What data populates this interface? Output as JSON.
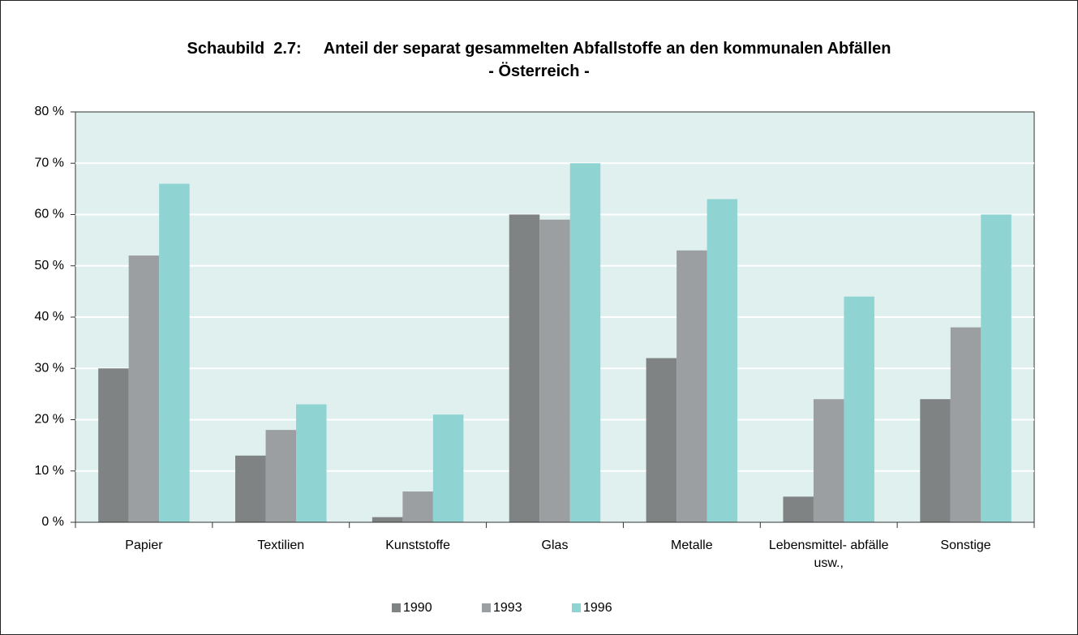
{
  "chart_data": {
    "type": "bar",
    "title": "Schaubild  2.7:     Anteil der separat gesammelten Abfallstoffe an den kommunalen Abfällen",
    "subtitle": "- Österreich -",
    "categories": [
      "Papier",
      "Textilien",
      "Kunststoffe",
      "Glas",
      "Metalle",
      "Lebensmittel- abfälle usw.,",
      "Sonstige"
    ],
    "series": [
      {
        "name": "1990",
        "color": "#7f8383",
        "values": [
          30,
          13,
          1,
          60,
          32,
          5,
          24
        ]
      },
      {
        "name": "1993",
        "color": "#9c9fa2",
        "values": [
          52,
          18,
          6,
          59,
          53,
          24,
          38
        ]
      },
      {
        "name": "1996",
        "color": "#8fd4d3",
        "values": [
          66,
          23,
          21,
          70,
          63,
          44,
          60
        ]
      }
    ],
    "ylim": [
      0,
      80
    ],
    "yticks": [
      {
        "value": 0,
        "label": "0 %"
      },
      {
        "value": 10,
        "label": "10 %"
      },
      {
        "value": 20,
        "label": "20 %"
      },
      {
        "value": 30,
        "label": "30 %"
      },
      {
        "value": 40,
        "label": "40 %"
      },
      {
        "value": 50,
        "label": "50 %"
      },
      {
        "value": 60,
        "label": "60 %"
      },
      {
        "value": 70,
        "label": "70 %"
      },
      {
        "value": 80,
        "label": "80 %"
      }
    ],
    "grid": true,
    "legend": "bottom",
    "plot_background": "#dff0ef"
  }
}
